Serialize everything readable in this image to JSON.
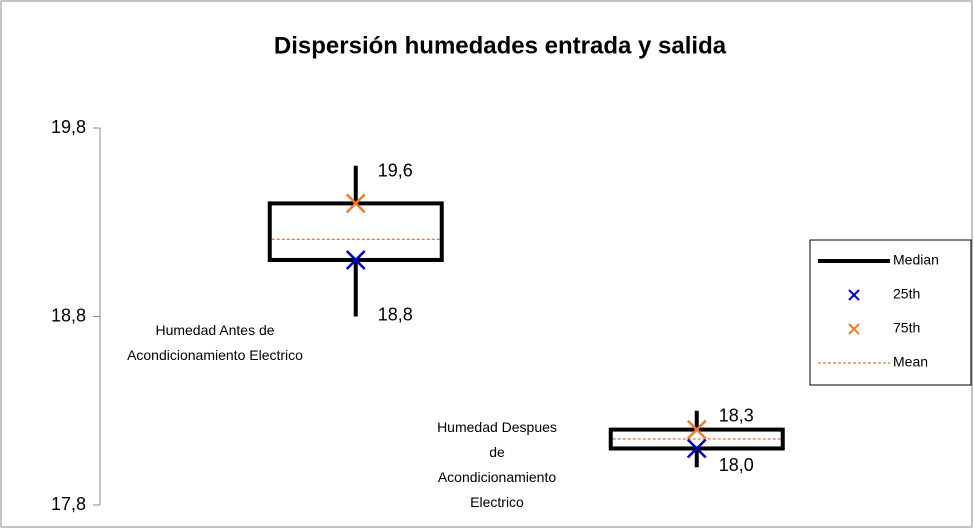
{
  "chart_data": {
    "type": "box",
    "title": "Dispersión humedades entrada y salida",
    "categories": [
      "Humedad Antes de Acondicionamiento Electrico",
      "Humedad Despues de Acondicionamiento Electrico"
    ],
    "ylim": [
      17.8,
      19.8
    ],
    "yticks": [
      {
        "value": 17.8,
        "label": "17,8"
      },
      {
        "value": 18.8,
        "label": "18,8"
      },
      {
        "value": 19.8,
        "label": "19,8"
      }
    ],
    "series": [
      {
        "name": "Median",
        "color": "#000000",
        "values": [
          19.1,
          18.1
        ]
      },
      {
        "name": "25th",
        "color": "#0000cc",
        "values": [
          19.1,
          18.1
        ]
      },
      {
        "name": "75th",
        "color": "#ed7d31",
        "values": [
          19.4,
          18.2
        ]
      },
      {
        "name": "Mean",
        "color": "#c55a11",
        "values": [
          19.21,
          18.15
        ]
      }
    ],
    "min": [
      18.8,
      18.0
    ],
    "min_labels": [
      "18,8",
      "18,0"
    ],
    "max": [
      19.6,
      18.3
    ],
    "max_labels": [
      "19,6",
      "18,3"
    ],
    "legend": "right"
  }
}
